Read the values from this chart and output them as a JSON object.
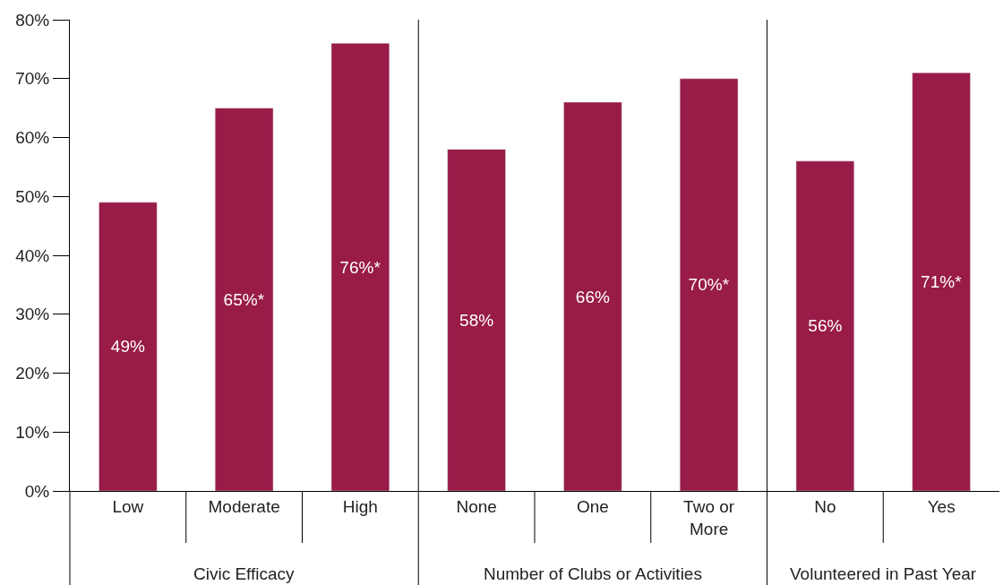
{
  "chart_data": {
    "type": "bar",
    "categories": [
      "Low",
      "Moderate",
      "High",
      "None",
      "One",
      "Two or More",
      "No",
      "Yes"
    ],
    "values": [
      49,
      65,
      76,
      58,
      66,
      70,
      56,
      71
    ],
    "value_labels": [
      "49%",
      "65%*",
      "76%*",
      "58%",
      "66%",
      "70%*",
      "56%",
      "71%*"
    ],
    "color": "#981b48",
    "ylim": [
      0,
      80
    ],
    "yticks": [
      {
        "value": 0,
        "label": "0%"
      },
      {
        "value": 10,
        "label": "10%"
      },
      {
        "value": 20,
        "label": "20%"
      },
      {
        "value": 30,
        "label": "30%"
      },
      {
        "value": 40,
        "label": "40%"
      },
      {
        "value": 50,
        "label": "50%"
      },
      {
        "value": 60,
        "label": "60%"
      },
      {
        "value": 70,
        "label": "70%"
      },
      {
        "value": 80,
        "label": "80%"
      }
    ],
    "annotations": [
      "Civic Efficacy",
      "Number of Clubs or Activities",
      "Volunteered in Past Year"
    ]
  }
}
